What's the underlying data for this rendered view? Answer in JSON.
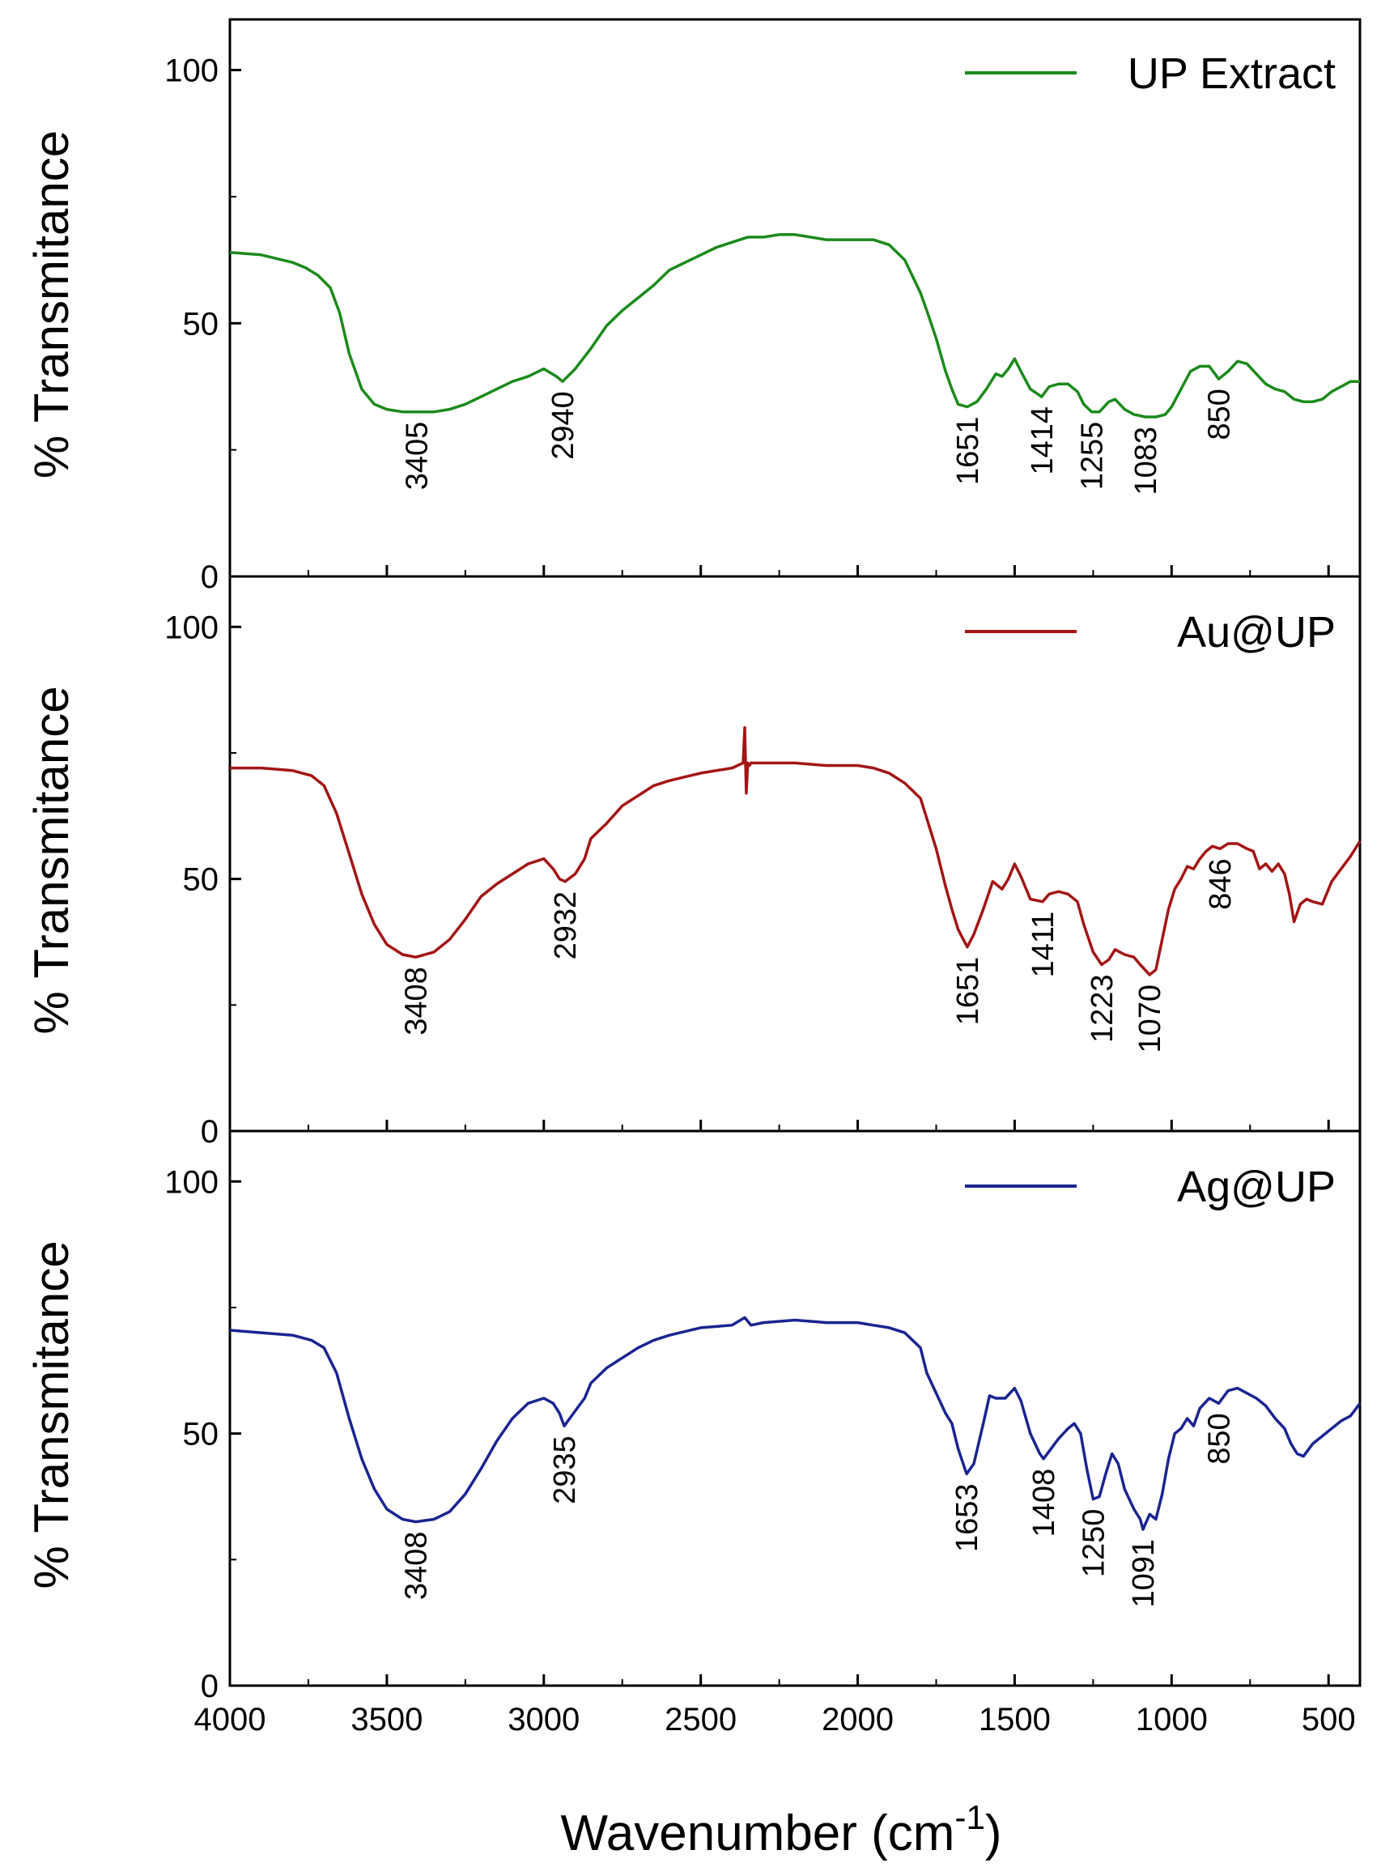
{
  "chart_data": {
    "type": "line",
    "title": "",
    "xlabel": "Wavenumber (cm",
    "xlabel_superscript": "-1",
    "xlabel_close": ")",
    "xlim": [
      4000,
      400
    ],
    "xticks": [
      4000,
      3500,
      3000,
      2500,
      2000,
      1500,
      1000,
      500
    ],
    "xtick_labels": [
      "4000",
      "3500",
      "3000",
      "2500",
      "2000",
      "1500",
      "1000",
      "500"
    ],
    "panels": [
      {
        "name": "up-extract",
        "ylabel": "% Transmitance",
        "ylim": [
          0,
          110
        ],
        "yticks": [
          0,
          50,
          100
        ],
        "ytick_labels": [
          "0",
          "50",
          "100"
        ],
        "legend": "UP Extract",
        "legend_position": "top-right",
        "color": "#1b8a1b",
        "x": [
          4000,
          3900,
          3800,
          3760,
          3720,
          3680,
          3650,
          3620,
          3580,
          3540,
          3500,
          3450,
          3405,
          3350,
          3300,
          3250,
          3200,
          3150,
          3100,
          3050,
          3000,
          2960,
          2940,
          2900,
          2850,
          2800,
          2750,
          2700,
          2650,
          2600,
          2500,
          2450,
          2400,
          2350,
          2300,
          2250,
          2200,
          2150,
          2100,
          2050,
          2000,
          1950,
          1900,
          1850,
          1800,
          1780,
          1750,
          1720,
          1700,
          1680,
          1651,
          1620,
          1590,
          1560,
          1540,
          1520,
          1500,
          1480,
          1450,
          1414,
          1390,
          1360,
          1330,
          1300,
          1280,
          1255,
          1230,
          1200,
          1180,
          1150,
          1120,
          1083,
          1050,
          1020,
          1000,
          970,
          940,
          910,
          880,
          850,
          820,
          790,
          760,
          730,
          700,
          670,
          640,
          610,
          580,
          550,
          520,
          490,
          460,
          430,
          400
        ],
        "y": [
          64,
          63.5,
          62,
          61,
          59.5,
          57,
          52,
          44,
          37,
          34,
          33,
          32.5,
          32.5,
          32.5,
          33,
          34,
          35.5,
          37,
          38.5,
          39.5,
          41,
          39.5,
          38.5,
          41,
          45,
          49.5,
          52.5,
          55,
          57.5,
          60.5,
          63.5,
          65,
          66,
          67,
          67,
          67.5,
          67.5,
          67,
          66.5,
          66.5,
          66.5,
          66.5,
          65.5,
          62.5,
          56,
          52.5,
          47,
          40.5,
          37,
          34,
          33.5,
          34.5,
          37,
          40,
          39.5,
          41,
          43,
          40.5,
          37,
          35.5,
          37.5,
          38,
          38,
          36.5,
          34,
          32.5,
          32.5,
          34.5,
          35,
          33,
          32,
          31.5,
          31.5,
          32,
          33.5,
          37,
          40.5,
          41.5,
          41.5,
          39,
          40.5,
          42.5,
          42,
          40,
          38,
          37,
          36.5,
          35,
          34.5,
          34.5,
          35,
          36.5,
          37.5,
          38.5,
          38.5
        ],
        "peaks": [
          {
            "x": 3405,
            "label": "3405"
          },
          {
            "x": 2940,
            "label": "2940"
          },
          {
            "x": 1651,
            "label": "1651"
          },
          {
            "x": 1414,
            "label": "1414"
          },
          {
            "x": 1255,
            "label": "1255"
          },
          {
            "x": 1083,
            "label": "1083"
          },
          {
            "x": 850,
            "label": "850"
          }
        ]
      },
      {
        "name": "au-up",
        "ylabel": "% Transmitance",
        "ylim": [
          0,
          110
        ],
        "yticks": [
          0,
          50,
          100
        ],
        "ytick_labels": [
          "0",
          "50",
          "100"
        ],
        "legend": "Au@UP",
        "legend_position": "top-right",
        "color": "#a31515",
        "x": [
          4000,
          3900,
          3800,
          3740,
          3700,
          3660,
          3620,
          3580,
          3540,
          3500,
          3450,
          3408,
          3350,
          3300,
          3250,
          3200,
          3150,
          3100,
          3050,
          3000,
          2970,
          2950,
          2932,
          2900,
          2870,
          2850,
          2800,
          2750,
          2700,
          2650,
          2600,
          2500,
          2400,
          2365,
          2360,
          2355,
          2350,
          2345,
          2340,
          2300,
          2200,
          2100,
          2000,
          1950,
          1900,
          1850,
          1800,
          1780,
          1750,
          1720,
          1700,
          1680,
          1651,
          1630,
          1600,
          1570,
          1540,
          1520,
          1500,
          1480,
          1450,
          1411,
          1390,
          1360,
          1330,
          1300,
          1280,
          1250,
          1223,
          1200,
          1180,
          1150,
          1120,
          1100,
          1070,
          1050,
          1030,
          1010,
          990,
          970,
          950,
          930,
          910,
          890,
          870,
          846,
          820,
          790,
          760,
          740,
          720,
          700,
          680,
          660,
          640,
          625,
          610,
          590,
          570,
          550,
          520,
          490,
          460,
          430,
          400
        ],
        "y": [
          72,
          72,
          71.5,
          70.5,
          68.5,
          63,
          55,
          47,
          41,
          37,
          35,
          34.5,
          35.5,
          38,
          42,
          46.5,
          49,
          51,
          53,
          54,
          52,
          50,
          49.5,
          51,
          54,
          58,
          61,
          64.5,
          66.5,
          68.5,
          69.5,
          71,
          72,
          73,
          80,
          67,
          73,
          72.5,
          73,
          73,
          73,
          72.5,
          72.5,
          72,
          71,
          69,
          66,
          62,
          56,
          48.5,
          44,
          40,
          36.5,
          39,
          44,
          49.5,
          48,
          50,
          53,
          50.5,
          46,
          45.5,
          47,
          47.5,
          47,
          45.5,
          41,
          35.5,
          33,
          34,
          36,
          35,
          34.5,
          33,
          31,
          32,
          38,
          44,
          48,
          50,
          52.5,
          52,
          54,
          55.5,
          56.5,
          56,
          57,
          57,
          56,
          55.5,
          52,
          53,
          51.5,
          53,
          51,
          47,
          41.5,
          45,
          46,
          45.5,
          45,
          49.5,
          52,
          54.5,
          57.5
        ],
        "peaks": [
          {
            "x": 3408,
            "label": "3408"
          },
          {
            "x": 2932,
            "label": "2932"
          },
          {
            "x": 1651,
            "label": "1651"
          },
          {
            "x": 1411,
            "label": "1411"
          },
          {
            "x": 1223,
            "label": "1223"
          },
          {
            "x": 1070,
            "label": "1070"
          },
          {
            "x": 846,
            "label": "846"
          }
        ]
      },
      {
        "name": "ag-up",
        "ylabel": "% Transmitance",
        "ylim": [
          0,
          110
        ],
        "yticks": [
          0,
          50,
          100
        ],
        "ytick_labels": [
          "0",
          "50",
          "100"
        ],
        "legend": "Ag@UP",
        "legend_position": "top-right",
        "color": "#1a2591",
        "x": [
          4000,
          3900,
          3800,
          3740,
          3700,
          3660,
          3620,
          3580,
          3540,
          3500,
          3450,
          3408,
          3350,
          3300,
          3250,
          3200,
          3150,
          3100,
          3050,
          3000,
          2970,
          2950,
          2935,
          2900,
          2870,
          2850,
          2800,
          2750,
          2700,
          2650,
          2600,
          2500,
          2400,
          2360,
          2340,
          2300,
          2200,
          2100,
          2000,
          1950,
          1900,
          1850,
          1800,
          1780,
          1750,
          1720,
          1700,
          1680,
          1653,
          1630,
          1600,
          1580,
          1560,
          1530,
          1500,
          1480,
          1450,
          1420,
          1408,
          1390,
          1360,
          1330,
          1310,
          1290,
          1270,
          1250,
          1230,
          1210,
          1190,
          1170,
          1150,
          1120,
          1100,
          1091,
          1070,
          1050,
          1030,
          1010,
          990,
          970,
          950,
          930,
          910,
          880,
          850,
          820,
          790,
          760,
          730,
          700,
          670,
          640,
          620,
          600,
          580,
          550,
          520,
          490,
          460,
          430,
          400
        ],
        "y": [
          70.5,
          70,
          69.5,
          68.5,
          67,
          62,
          53,
          45,
          39,
          35,
          33,
          32.5,
          33,
          34.5,
          38,
          43,
          48.5,
          53,
          56,
          57,
          56,
          54,
          51.5,
          54.5,
          57,
          60,
          63,
          65,
          67,
          68.5,
          69.5,
          71,
          71.5,
          73,
          71.5,
          72,
          72.5,
          72,
          72,
          71.5,
          71,
          70,
          67,
          62,
          58,
          54,
          52,
          47,
          42,
          44,
          52,
          57.5,
          57,
          57,
          59,
          56.5,
          50,
          46,
          45,
          46.5,
          49,
          51,
          52,
          50,
          43,
          37,
          37.5,
          42,
          46,
          44,
          39,
          35,
          33,
          31,
          34,
          33,
          38,
          45,
          50,
          51,
          53,
          51.5,
          55,
          57,
          56,
          58.5,
          59,
          58,
          57,
          55.5,
          53,
          51,
          48,
          46,
          45.5,
          48,
          49.5,
          51,
          52.5,
          53.5,
          56
        ],
        "peaks": [
          {
            "x": 3408,
            "label": "3408"
          },
          {
            "x": 2935,
            "label": "2935"
          },
          {
            "x": 1653,
            "label": "1653"
          },
          {
            "x": 1408,
            "label": "1408"
          },
          {
            "x": 1250,
            "label": "1250"
          },
          {
            "x": 1091,
            "label": "1091"
          },
          {
            "x": 850,
            "label": "850"
          }
        ]
      }
    ]
  }
}
